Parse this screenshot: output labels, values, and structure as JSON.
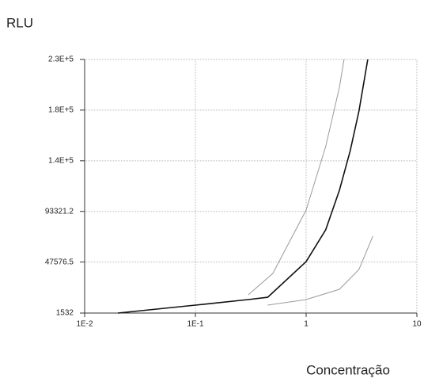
{
  "chart_data": {
    "type": "line",
    "y_label": "RLU",
    "x_label": "Concentração",
    "log_x": true,
    "grid": true,
    "xlim": [
      0.01,
      10
    ],
    "xticks": [
      {
        "value": 0.01,
        "label": "1E-2"
      },
      {
        "value": 0.1,
        "label": "1E-1"
      },
      1,
      10
    ],
    "ylim": [
      1532,
      230555.3
    ],
    "yticks": [
      1532,
      47576.5,
      93321.2,
      {
        "value": 139065.9,
        "label": "1.4E+5"
      },
      {
        "value": 184810.6,
        "label": "1.8E+5"
      },
      {
        "value": 230555.3,
        "label": "2.3E+5"
      }
    ],
    "series": [
      {
        "color": "#111111",
        "x": [
          0.02,
          0.1,
          0.3,
          0.45,
          1,
          1.5,
          2,
          2.5,
          3,
          3.6
        ],
        "values": [
          1532,
          8689,
          13700,
          15800,
          48000,
          76700,
          112500,
          148000,
          184000,
          230555
        ]
      },
      {
        "color": "#9a9a9a",
        "x": [
          0.3,
          0.5,
          1,
          1.5,
          2,
          2.2
        ],
        "values": [
          18000,
          37300,
          94600,
          151800,
          205500,
          230555
        ]
      },
      {
        "color": "#9a9a9a",
        "x": [
          0.45,
          1,
          2,
          3,
          4
        ],
        "values": [
          8700,
          13700,
          23000,
          40900,
          70900
        ]
      }
    ]
  }
}
